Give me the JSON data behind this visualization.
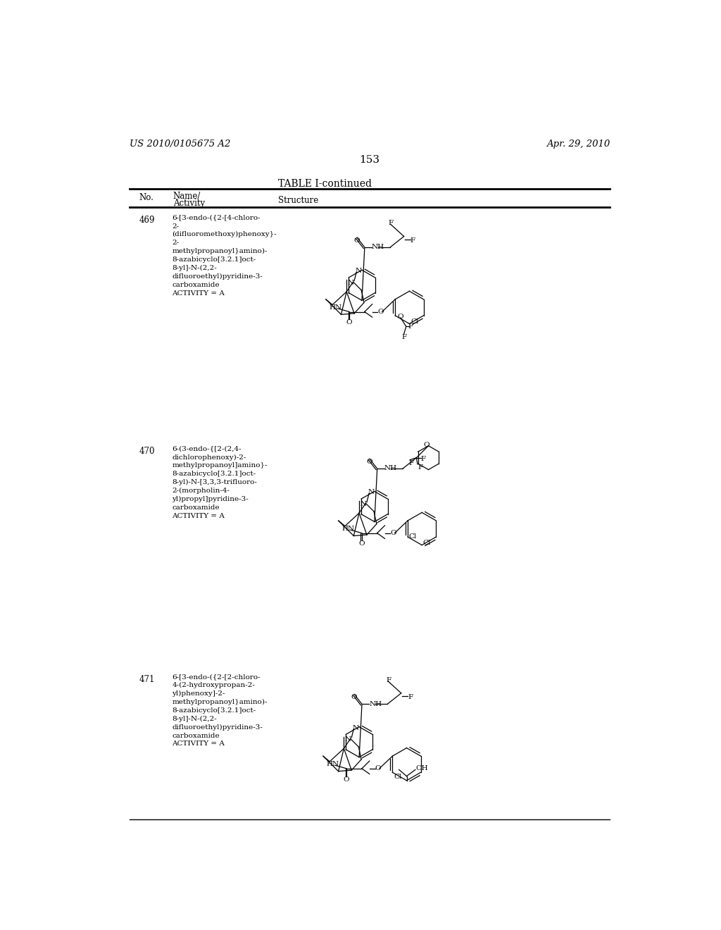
{
  "page_header_left": "US 2010/0105675 A2",
  "page_header_right": "Apr. 29, 2010",
  "page_number": "153",
  "table_title": "TABLE I-continued",
  "bg_color": "#ffffff",
  "text_color": "#000000",
  "entry469_no": "469",
  "entry469_name": "6-[3-endo-({2-[4-chloro-\n2-\n(difluoromethoxy)phenoxy}-\n2-\nmethylpropanoyl}amino)-\n8-azabicyclo[3.2.1]oct-\n8-yl]-N-(2,2-\ndifluoroethyl)pyridine-3-\ncarboxamide\nACTIVITY = A",
  "entry470_no": "470",
  "entry470_name": "6-(3-endo-{[2-(2,4-\ndichlorophenoxy)-2-\nmethylpropanoyl]amino}-\n8-azabicyclo[3.2.1]oct-\n8-yl)-N-[3,3,3-trifluoro-\n2-(morpholin-4-\nyl)propyl]pyridine-3-\ncarboxamide\nACTIVITY = A",
  "entry471_no": "471",
  "entry471_name": "6-[3-endo-({2-[2-chloro-\n4-(2-hydroxypropan-2-\nyl)phenoxy]-2-\nmethylpropanoyl}amino)-\n8-azabicyclo[3.2.1]oct-\n8-yl]-N-(2,2-\ndifluoroethyl)pyridine-3-\ncarboxamide\nACTIVITY = A",
  "lw": 0.9,
  "fs": 7.5
}
